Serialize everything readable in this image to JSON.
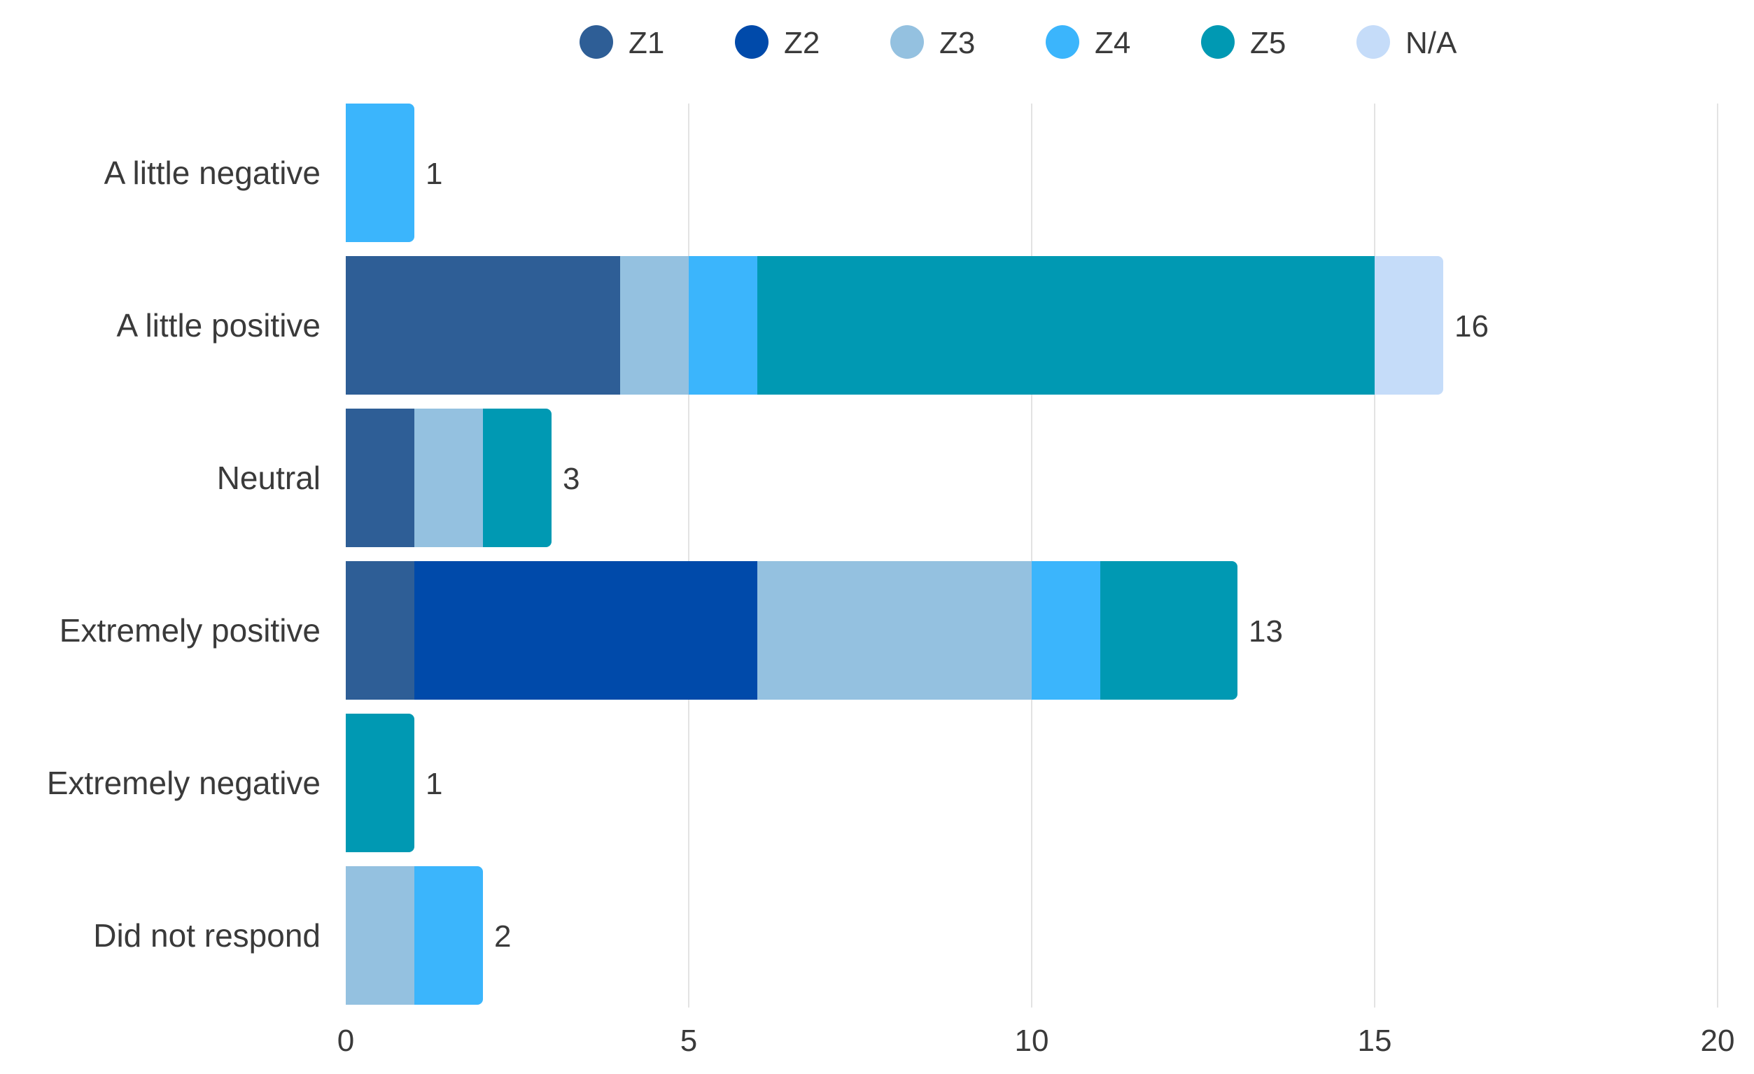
{
  "chart_data": {
    "type": "bar",
    "orientation": "horizontal",
    "stacked": true,
    "title": "",
    "xlabel": "",
    "ylabel": "",
    "xlim": [
      0,
      20
    ],
    "xticks": [
      0,
      5,
      10,
      15,
      20
    ],
    "grid": true,
    "legend_position": "top",
    "categories": [
      "A little negative",
      "A little positive",
      "Neutral",
      "Extremely positive",
      "Extremely negative",
      "Did not respond"
    ],
    "series": [
      {
        "name": "Z1",
        "color": "#2E5E96",
        "values": [
          0,
          4,
          1,
          1,
          0,
          0
        ]
      },
      {
        "name": "Z2",
        "color": "#004AAA",
        "values": [
          0,
          0,
          0,
          5,
          0,
          0
        ]
      },
      {
        "name": "Z3",
        "color": "#94C1E0",
        "values": [
          0,
          1,
          1,
          4,
          0,
          1
        ]
      },
      {
        "name": "Z4",
        "color": "#3BB5FC",
        "values": [
          1,
          1,
          0,
          1,
          0,
          1
        ]
      },
      {
        "name": "Z5",
        "color": "#0099B3",
        "values": [
          0,
          9,
          1,
          2,
          1,
          0
        ]
      },
      {
        "name": "N/A",
        "color": "#C5DCF9",
        "values": [
          0,
          1,
          0,
          0,
          0,
          0
        ]
      }
    ],
    "totals": [
      1,
      16,
      3,
      13,
      1,
      2
    ]
  }
}
